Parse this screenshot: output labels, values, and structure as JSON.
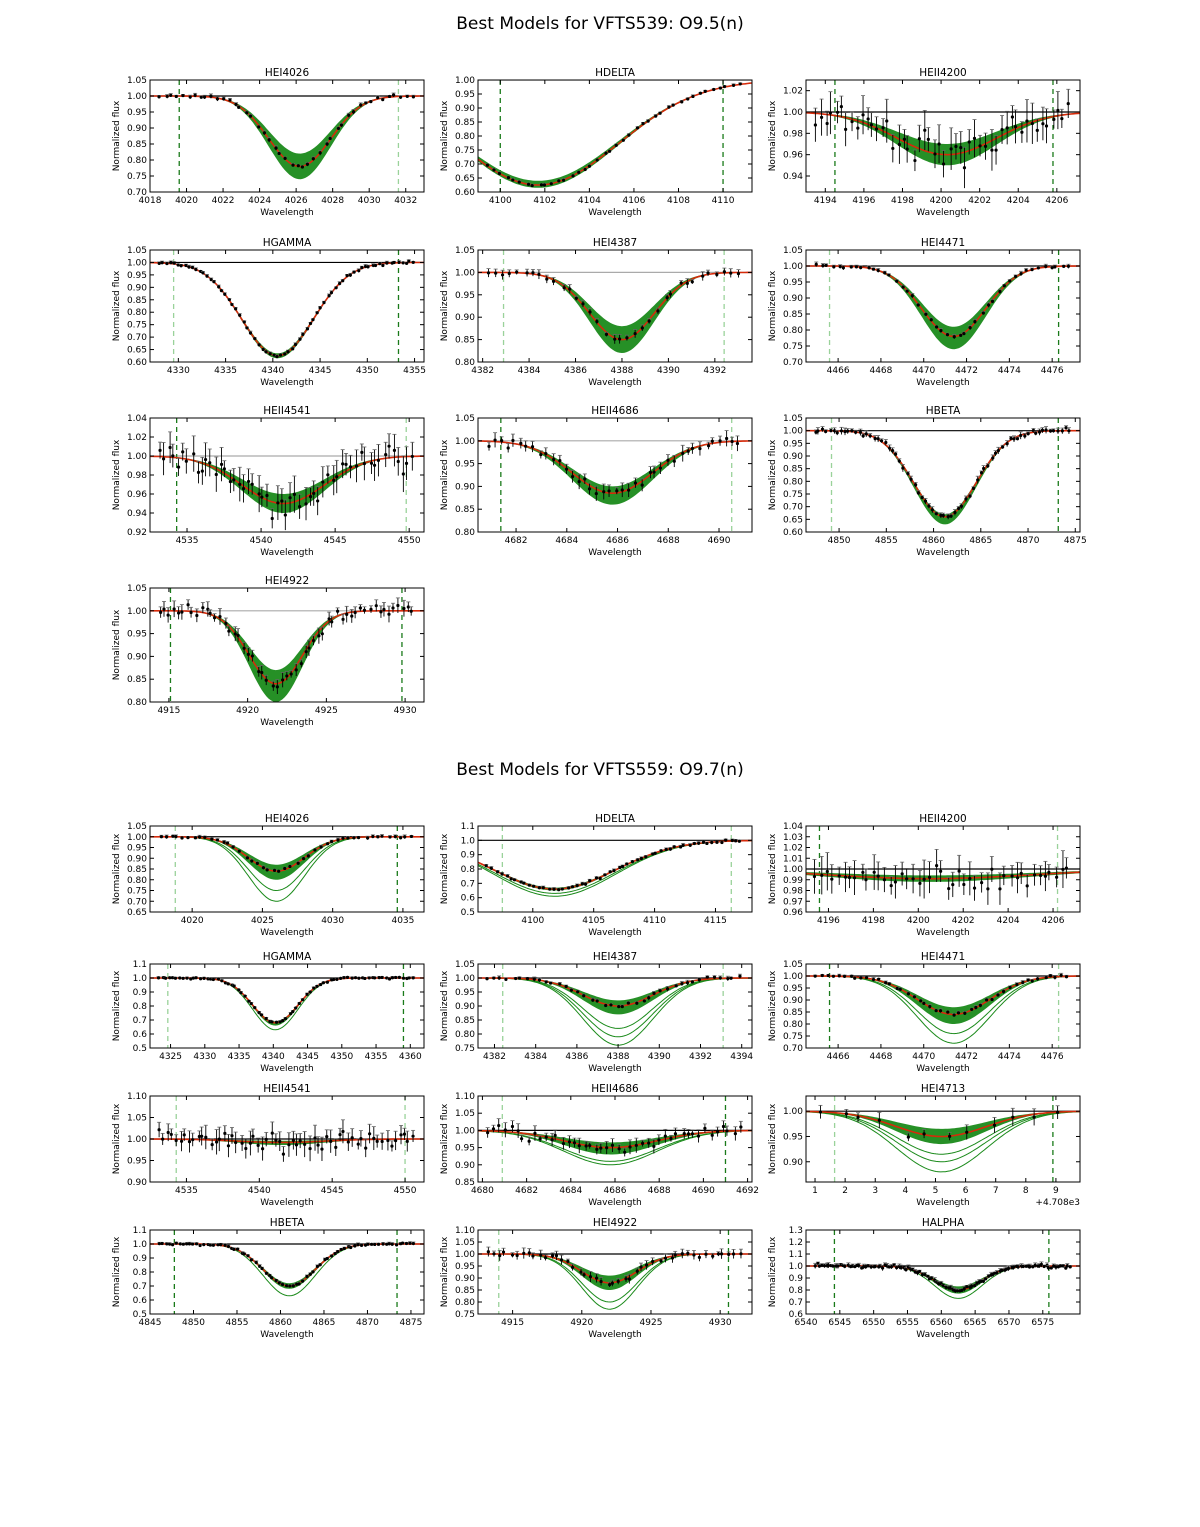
{
  "figures": [
    {
      "title": "Best Models for VFTS539: O9.5(n)"
    },
    {
      "title": "Best Models for VFTS559: O9.7(n)"
    }
  ],
  "common": {
    "xlabel": "Wavelength",
    "ylabel": "Normalized flux"
  },
  "colors": {
    "model_band": "#1a8a1a",
    "best_fit": "#d62a0a",
    "data": "#000000",
    "err": "#666666",
    "continuum": "#000000",
    "continuum_grey": "#aaaaaa",
    "vline_dark": "#1a7a1a",
    "vline_light": "#9ad29a"
  },
  "chart_data": [
    {
      "figure": 0,
      "title": "HEI4026",
      "type": "line",
      "xlim": [
        4018,
        4033
      ],
      "ylim": [
        0.7,
        1.05
      ],
      "xticks": [
        "4018",
        "4020",
        "4022",
        "4024",
        "4026",
        "4028",
        "4030",
        "4032"
      ],
      "yticks": [
        "0.70",
        "0.75",
        "0.80",
        "0.85",
        "0.90",
        "0.95",
        "1.00",
        "1.05"
      ],
      "continuum": 1.0,
      "line_center": 4026.2,
      "sigma": 1.7,
      "best_depth": 0.22,
      "band_min_depth": 0.18,
      "band_max_depth": 0.26,
      "vlines": [
        {
          "x": 4019.6,
          "style": "dark"
        },
        {
          "x": 4031.6,
          "style": "light"
        }
      ],
      "noise": 0.005,
      "npts": 45
    },
    {
      "figure": 0,
      "title": "HDELTA",
      "type": "line",
      "xlim": [
        4099,
        4111.3
      ],
      "ylim": [
        0.6,
        1.0
      ],
      "xticks": [
        "4100",
        "4102",
        "4104",
        "4106",
        "4108",
        "4110"
      ],
      "yticks": [
        "0.60",
        "0.65",
        "0.70",
        "0.75",
        "0.80",
        "0.85",
        "0.90",
        "0.95",
        "1.00"
      ],
      "continuum": 1.0,
      "line_center": 4101.7,
      "sigma": 3.6,
      "best_depth": 0.375,
      "band_min_depth": 0.36,
      "band_max_depth": 0.385,
      "vlines": [
        {
          "x": 4100.0,
          "style": "dark"
        },
        {
          "x": 4110.0,
          "style": "dark"
        }
      ],
      "noise": 0.004,
      "npts": 40
    },
    {
      "figure": 0,
      "title": "HEII4200",
      "type": "line",
      "xlim": [
        4193,
        4207.2
      ],
      "ylim": [
        0.925,
        1.03
      ],
      "xticks": [
        "4194",
        "4196",
        "4198",
        "4200",
        "4202",
        "4204",
        "4206"
      ],
      "yticks": [
        "0.94",
        "0.96",
        "0.98",
        "1.00",
        "1.02"
      ],
      "continuum": 1.0,
      "line_center": 4200.3,
      "sigma": 2.6,
      "best_depth": 0.04,
      "band_min_depth": 0.03,
      "band_max_depth": 0.05,
      "vlines": [
        {
          "x": 4194.5,
          "style": "dark"
        },
        {
          "x": 4205.8,
          "style": "dark"
        }
      ],
      "noise": 0.014,
      "npts": 50
    },
    {
      "figure": 0,
      "title": "HGAMMA",
      "type": "line",
      "xlim": [
        4327,
        4356
      ],
      "ylim": [
        0.6,
        1.05
      ],
      "xticks": [
        "4330",
        "4335",
        "4340",
        "4345",
        "4350",
        "4355"
      ],
      "yticks": [
        "0.60",
        "0.65",
        "0.70",
        "0.75",
        "0.80",
        "0.85",
        "0.90",
        "0.95",
        "1.00",
        "1.05"
      ],
      "continuum": 1.0,
      "line_center": 4340.5,
      "sigma": 3.8,
      "best_depth": 0.375,
      "band_min_depth": 0.365,
      "band_max_depth": 0.385,
      "vlines": [
        {
          "x": 4329.5,
          "style": "light"
        },
        {
          "x": 4353.3,
          "style": "dark"
        }
      ],
      "noise": 0.005,
      "npts": 70
    },
    {
      "figure": 0,
      "title": "HEI4387",
      "type": "line",
      "xlim": [
        4381.8,
        4393.6
      ],
      "ylim": [
        0.8,
        1.05
      ],
      "xticks": [
        "4382",
        "4384",
        "4386",
        "4388",
        "4390",
        "4392"
      ],
      "yticks": [
        "0.80",
        "0.85",
        "0.90",
        "0.95",
        "1.00",
        "1.05"
      ],
      "continuum": 1.0,
      "line_center": 4388.0,
      "sigma": 1.4,
      "best_depth": 0.15,
      "band_min_depth": 0.12,
      "band_max_depth": 0.18,
      "vlines": [
        {
          "x": 4382.9,
          "style": "light"
        },
        {
          "x": 4392.4,
          "style": "light"
        }
      ],
      "noise": 0.007,
      "npts": 35
    },
    {
      "figure": 0,
      "title": "HEI4471",
      "type": "line",
      "xlim": [
        4464.5,
        4477.3
      ],
      "ylim": [
        0.7,
        1.05
      ],
      "xticks": [
        "4466",
        "4468",
        "4470",
        "4472",
        "4474",
        "4476"
      ],
      "yticks": [
        "0.70",
        "0.75",
        "0.80",
        "0.85",
        "0.90",
        "0.95",
        "1.00",
        "1.05"
      ],
      "continuum": 1.0,
      "line_center": 4471.4,
      "sigma": 1.5,
      "best_depth": 0.22,
      "band_min_depth": 0.19,
      "band_max_depth": 0.26,
      "vlines": [
        {
          "x": 4465.6,
          "style": "light"
        },
        {
          "x": 4476.3,
          "style": "dark"
        }
      ],
      "noise": 0.005,
      "npts": 45
    },
    {
      "figure": 0,
      "title": "HEII4541",
      "type": "line",
      "xlim": [
        4532.5,
        4551
      ],
      "ylim": [
        0.92,
        1.04
      ],
      "xticks": [
        "4535",
        "4540",
        "4545",
        "4550"
      ],
      "yticks": [
        "0.92",
        "0.94",
        "0.96",
        "0.98",
        "1.00",
        "1.02",
        "1.04"
      ],
      "continuum": 1.0,
      "line_center": 4541.5,
      "sigma": 2.8,
      "best_depth": 0.05,
      "band_min_depth": 0.04,
      "band_max_depth": 0.06,
      "vlines": [
        {
          "x": 4534.3,
          "style": "dark"
        },
        {
          "x": 4549.8,
          "style": "light"
        }
      ],
      "noise": 0.013,
      "npts": 55
    },
    {
      "figure": 0,
      "title": "HEII4686",
      "type": "line",
      "xlim": [
        4680.5,
        4691.3
      ],
      "ylim": [
        0.8,
        1.05
      ],
      "xticks": [
        "4682",
        "4684",
        "4686",
        "4688",
        "4690"
      ],
      "yticks": [
        "0.80",
        "0.85",
        "0.90",
        "0.95",
        "1.00",
        "1.05"
      ],
      "continuum": 1.0,
      "line_center": 4685.8,
      "sigma": 1.6,
      "best_depth": 0.115,
      "band_min_depth": 0.1,
      "band_max_depth": 0.14,
      "vlines": [
        {
          "x": 4681.4,
          "style": "dark"
        },
        {
          "x": 4690.5,
          "style": "light"
        }
      ],
      "noise": 0.012,
      "npts": 40
    },
    {
      "figure": 0,
      "title": "HBETA",
      "type": "line",
      "xlim": [
        4846.5,
        4875.5
      ],
      "ylim": [
        0.6,
        1.05
      ],
      "xticks": [
        "4850",
        "4855",
        "4860",
        "4865",
        "4870",
        "4875"
      ],
      "yticks": [
        "0.60",
        "0.65",
        "0.70",
        "0.75",
        "0.80",
        "0.85",
        "0.90",
        "0.95",
        "1.00",
        "1.05"
      ],
      "continuum": 1.0,
      "line_center": 4861.2,
      "sigma": 3.3,
      "best_depth": 0.34,
      "band_min_depth": 0.33,
      "band_max_depth": 0.37,
      "vlines": [
        {
          "x": 4849.2,
          "style": "light"
        },
        {
          "x": 4873.2,
          "style": "dark"
        }
      ],
      "noise": 0.01,
      "npts": 70
    },
    {
      "figure": 0,
      "title": "HEI4922",
      "type": "line",
      "xlim": [
        4913.8,
        4931.2
      ],
      "ylim": [
        0.8,
        1.05
      ],
      "xticks": [
        "4915",
        "4920",
        "4925",
        "4930"
      ],
      "yticks": [
        "0.80",
        "0.85",
        "0.90",
        "0.95",
        "1.00",
        "1.05"
      ],
      "continuum": 1.0,
      "line_center": 4921.8,
      "sigma": 1.7,
      "best_depth": 0.16,
      "band_min_depth": 0.13,
      "band_max_depth": 0.2,
      "vlines": [
        {
          "x": 4915.1,
          "style": "dark"
        },
        {
          "x": 4929.8,
          "style": "dark"
        }
      ],
      "noise": 0.012,
      "npts": 55
    },
    {
      "figure": 1,
      "title": "HEI4026",
      "type": "line",
      "xlim": [
        4017,
        4036.5
      ],
      "ylim": [
        0.65,
        1.05
      ],
      "xticks": [
        "4020",
        "4025",
        "4030",
        "4035"
      ],
      "yticks": [
        "0.65",
        "0.70",
        "0.75",
        "0.80",
        "0.85",
        "0.90",
        "0.95",
        "1.00",
        "1.05"
      ],
      "continuum": 1.0,
      "line_center": 4026.0,
      "sigma": 2.0,
      "best_depth": 0.16,
      "band_min_depth": 0.13,
      "band_max_depth": 0.2,
      "extra_depths": [
        0.25,
        0.3
      ],
      "vlines": [
        {
          "x": 4018.8,
          "style": "light"
        },
        {
          "x": 4034.6,
          "style": "dark"
        }
      ],
      "noise": 0.006,
      "npts": 45
    },
    {
      "figure": 1,
      "title": "HDELTA",
      "type": "line",
      "xlim": [
        4095.5,
        4118
      ],
      "ylim": [
        0.5,
        1.1
      ],
      "xticks": [
        "4100",
        "4105",
        "4110",
        "4115"
      ],
      "yticks": [
        "0.5",
        "0.6",
        "0.7",
        "0.8",
        "0.9",
        "1.0",
        "1.1"
      ],
      "continuum": 1.0,
      "line_center": 4101.8,
      "sigma": 5.0,
      "best_depth": 0.34,
      "band_min_depth": 0.33,
      "band_max_depth": 0.35,
      "extra_depths": [
        0.37,
        0.39
      ],
      "vlines": [
        {
          "x": 4097.5,
          "style": "light"
        },
        {
          "x": 4116.3,
          "style": "light"
        }
      ],
      "noise": 0.008,
      "npts": 55
    },
    {
      "figure": 1,
      "title": "HEII4200",
      "type": "line",
      "xlim": [
        4195,
        4207.2
      ],
      "ylim": [
        0.96,
        1.04
      ],
      "xticks": [
        "4196",
        "4198",
        "4200",
        "4202",
        "4204",
        "4206"
      ],
      "yticks": [
        "0.96",
        "0.97",
        "0.98",
        "0.99",
        "1.00",
        "1.01",
        "1.02",
        "1.03",
        "1.04"
      ],
      "continuum": 1.0,
      "line_center": 4200.5,
      "sigma": 4.5,
      "best_depth": 0.009,
      "band_min_depth": 0.006,
      "band_max_depth": 0.012,
      "vlines": [
        {
          "x": 4195.6,
          "style": "dark"
        },
        {
          "x": 4206.2,
          "style": "light"
        }
      ],
      "noise": 0.012,
      "npts": 45
    },
    {
      "figure": 1,
      "title": "HGAMMA",
      "type": "line",
      "xlim": [
        4322,
        4362
      ],
      "ylim": [
        0.5,
        1.1
      ],
      "xticks": [
        "4325",
        "4330",
        "4335",
        "4340",
        "4345",
        "4350",
        "4355",
        "4360"
      ],
      "yticks": [
        "0.5",
        "0.6",
        "0.7",
        "0.8",
        "0.9",
        "1.0",
        "1.1"
      ],
      "continuum": 1.0,
      "line_center": 4340.3,
      "sigma": 3.3,
      "best_depth": 0.32,
      "band_min_depth": 0.31,
      "band_max_depth": 0.34,
      "extra_depths": [
        0.37
      ],
      "vlines": [
        {
          "x": 4324.6,
          "style": "light"
        },
        {
          "x": 4359.0,
          "style": "dark"
        }
      ],
      "noise": 0.006,
      "npts": 75
    },
    {
      "figure": 1,
      "title": "HEI4387",
      "type": "line",
      "xlim": [
        4381.2,
        4394.5
      ],
      "ylim": [
        0.75,
        1.05
      ],
      "xticks": [
        "4382",
        "4384",
        "4386",
        "4388",
        "4390",
        "4392",
        "4394"
      ],
      "yticks": [
        "0.75",
        "0.80",
        "0.85",
        "0.90",
        "0.95",
        "1.00",
        "1.05"
      ],
      "continuum": 1.0,
      "line_center": 4388.0,
      "sigma": 1.7,
      "best_depth": 0.1,
      "band_min_depth": 0.08,
      "band_max_depth": 0.13,
      "extra_depths": [
        0.18,
        0.21,
        0.24
      ],
      "vlines": [
        {
          "x": 4382.4,
          "style": "light"
        },
        {
          "x": 4393.1,
          "style": "light"
        }
      ],
      "noise": 0.006,
      "npts": 40
    },
    {
      "figure": 1,
      "title": "HEI4471",
      "type": "line",
      "xlim": [
        4464.5,
        4477.3
      ],
      "ylim": [
        0.7,
        1.05
      ],
      "xticks": [
        "4466",
        "4468",
        "4470",
        "4472",
        "4474",
        "4476"
      ],
      "yticks": [
        "0.70",
        "0.75",
        "0.80",
        "0.85",
        "0.90",
        "0.95",
        "1.00",
        "1.05"
      ],
      "continuum": 1.0,
      "line_center": 4471.4,
      "sigma": 1.7,
      "best_depth": 0.16,
      "band_min_depth": 0.13,
      "band_max_depth": 0.2,
      "extra_depths": [
        0.24,
        0.28
      ],
      "vlines": [
        {
          "x": 4465.6,
          "style": "dark"
        },
        {
          "x": 4476.3,
          "style": "light"
        }
      ],
      "noise": 0.006,
      "npts": 45
    },
    {
      "figure": 1,
      "title": "HEII4541",
      "type": "line",
      "xlim": [
        4532.5,
        4551.3
      ],
      "ylim": [
        0.9,
        1.1
      ],
      "xticks": [
        "4535",
        "4540",
        "4545",
        "4550"
      ],
      "yticks": [
        "0.90",
        "0.95",
        "1.00",
        "1.05",
        "1.10"
      ],
      "continuum": 1.0,
      "line_center": 4541.5,
      "sigma": 3.0,
      "best_depth": 0.008,
      "band_min_depth": 0.004,
      "band_max_depth": 0.014,
      "vlines": [
        {
          "x": 4534.3,
          "style": "light"
        },
        {
          "x": 4550.0,
          "style": "light"
        }
      ],
      "noise": 0.02,
      "npts": 60
    },
    {
      "figure": 1,
      "title": "HEII4686",
      "type": "line",
      "xlim": [
        4679.8,
        4692.2
      ],
      "ylim": [
        0.85,
        1.1
      ],
      "xticks": [
        "4680",
        "4682",
        "4684",
        "4686",
        "4688",
        "4690",
        "4692"
      ],
      "yticks": [
        "0.85",
        "0.90",
        "0.95",
        "1.00",
        "1.05",
        "1.10"
      ],
      "continuum": 1.0,
      "line_center": 4685.8,
      "sigma": 2.1,
      "best_depth": 0.05,
      "band_min_depth": 0.035,
      "band_max_depth": 0.07,
      "extra_depths": [
        0.09,
        0.1
      ],
      "vlines": [
        {
          "x": 4680.9,
          "style": "light"
        },
        {
          "x": 4691.0,
          "style": "dark"
        }
      ],
      "noise": 0.015,
      "npts": 45
    },
    {
      "figure": 1,
      "title": "HEI4713",
      "type": "line",
      "xlim": [
        0.7,
        9.8
      ],
      "ylim": [
        0.86,
        1.03
      ],
      "xticks": [
        "1",
        "2",
        "3",
        "4",
        "5",
        "6",
        "7",
        "8",
        "9"
      ],
      "yticks": [
        "0.90",
        "0.95",
        "1.00"
      ],
      "offset_label": "+4.708e3",
      "continuum": 1.0,
      "line_center": 5.2,
      "sigma": 1.5,
      "best_depth": 0.05,
      "band_min_depth": 0.035,
      "band_max_depth": 0.065,
      "extra_depths": [
        0.085,
        0.1,
        0.12
      ],
      "vlines": [
        {
          "x": 1.65,
          "style": "light"
        },
        {
          "x": 8.9,
          "style": "dark"
        }
      ],
      "noise": 0.012,
      "npts": 12
    },
    {
      "figure": 1,
      "title": "HBETA",
      "type": "line",
      "xlim": [
        4845,
        4876.5
      ],
      "ylim": [
        0.5,
        1.1
      ],
      "xticks": [
        "4845",
        "4850",
        "4855",
        "4860",
        "4865",
        "4870",
        "4875"
      ],
      "yticks": [
        "0.5",
        "0.6",
        "0.7",
        "0.8",
        "0.9",
        "1.0",
        "1.1"
      ],
      "continuum": 1.0,
      "line_center": 4861.0,
      "sigma": 3.0,
      "best_depth": 0.3,
      "band_min_depth": 0.28,
      "band_max_depth": 0.32,
      "extra_depths": [
        0.37
      ],
      "vlines": [
        {
          "x": 4847.8,
          "style": "dark"
        },
        {
          "x": 4873.4,
          "style": "dark"
        }
      ],
      "noise": 0.008,
      "npts": 75
    },
    {
      "figure": 1,
      "title": "HEI4922",
      "type": "line",
      "xlim": [
        4912.5,
        4932.3
      ],
      "ylim": [
        0.75,
        1.1
      ],
      "xticks": [
        "4915",
        "4920",
        "4925",
        "4930"
      ],
      "yticks": [
        "0.75",
        "0.80",
        "0.85",
        "0.90",
        "0.95",
        "1.00",
        "1.05",
        "1.10"
      ],
      "continuum": 1.0,
      "line_center": 4922.0,
      "sigma": 2.0,
      "best_depth": 0.12,
      "band_min_depth": 0.09,
      "band_max_depth": 0.15,
      "extra_depths": [
        0.2,
        0.23
      ],
      "vlines": [
        {
          "x": 4914.0,
          "style": "light"
        },
        {
          "x": 4930.6,
          "style": "dark"
        }
      ],
      "noise": 0.015,
      "npts": 45
    },
    {
      "figure": 1,
      "title": "HALPHA",
      "type": "line",
      "xlim": [
        6540,
        6580.5
      ],
      "ylim": [
        0.6,
        1.3
      ],
      "xticks": [
        "6540",
        "6545",
        "6550",
        "6555",
        "6560",
        "6565",
        "6570",
        "6575"
      ],
      "yticks": [
        "0.6",
        "0.7",
        "0.8",
        "0.9",
        "1.0",
        "1.1",
        "1.2",
        "1.3"
      ],
      "continuum": 1.0,
      "line_center": 6562.5,
      "sigma": 3.5,
      "best_depth": 0.2,
      "band_min_depth": 0.17,
      "band_max_depth": 0.23,
      "extra_depths": [
        0.27
      ],
      "vlines": [
        {
          "x": 6544.2,
          "style": "dark"
        },
        {
          "x": 6575.9,
          "style": "dark"
        }
      ],
      "noise": 0.015,
      "npts": 110
    }
  ]
}
